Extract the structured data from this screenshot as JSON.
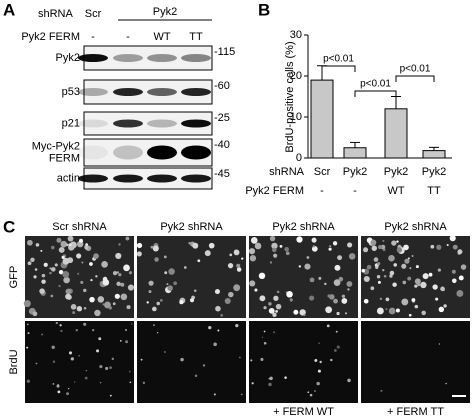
{
  "panel_a": {
    "letter": "A",
    "shrna_label": "shRNA",
    "shrna": [
      "Scr",
      "Pyk2"
    ],
    "ferm_label": "Pyk2 FERM",
    "ferm": [
      "-",
      "-",
      "WT",
      "TT"
    ],
    "rows": [
      {
        "label": [
          "Pyk2"
        ],
        "mw": "-115"
      },
      {
        "label": [
          "p53"
        ],
        "mw": "-60"
      },
      {
        "label": [
          "p21"
        ],
        "mw": "-25"
      },
      {
        "label": [
          "Myc-Pyk2",
          "FERM"
        ],
        "mw": "-40"
      },
      {
        "label": [
          "actin"
        ],
        "mw": "-45"
      }
    ]
  },
  "chart_data": {
    "type": "bar",
    "letter": "B",
    "y_label": "BrdU-positive cells (%)",
    "categories": [
      "Scr",
      "Pyk2",
      "Pyk2",
      "Pyk2"
    ],
    "values": [
      19,
      2.5,
      12,
      1.8
    ],
    "errors": [
      3.5,
      1.3,
      3,
      0.8
    ],
    "color": "#c8c8c8",
    "ylim": [
      0,
      30
    ],
    "yticks": [
      0,
      10,
      20,
      30
    ],
    "row_labels": [
      "shRNA",
      "Pyk2 FERM"
    ],
    "ferm": [
      "-",
      "-",
      "WT",
      "TT"
    ],
    "annotations": [
      {
        "text": "p<0.01"
      },
      {
        "text": "p<0.01"
      },
      {
        "text": "p<0.01"
      }
    ]
  },
  "panel_c": {
    "letter": "C",
    "columns": [
      "Scr shRNA",
      "Pyk2 shRNA",
      "Pyk2 shRNA",
      "Pyk2 shRNA"
    ],
    "rows": [
      "GFP",
      "BrdU"
    ],
    "footer": [
      "+ FERM WT",
      "+ FERM TT"
    ]
  }
}
